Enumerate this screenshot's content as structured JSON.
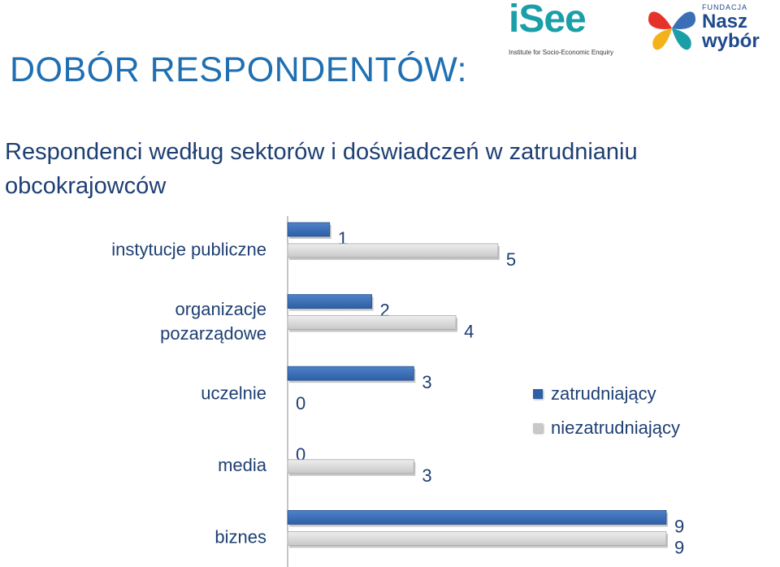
{
  "heading": "DOBÓR RESPONDENTÓW:",
  "logos": {
    "isee_word": "iSee",
    "isee_tagline": "Institute for Socio-Economic Enquiry",
    "nasz_small": "FUNDACJA",
    "nasz_line1": "Nasz",
    "nasz_line2": "wybór"
  },
  "colors": {
    "zatrudniajacy": "#2e5fa6",
    "niezatrudniajacy": "#c8c8c8",
    "text": "#1e3f73"
  },
  "chart_data": {
    "type": "bar",
    "orientation": "horizontal",
    "title": "Respondenci według sektorów i doświadczeń w zatrudnianiu obcokrajowców",
    "categories": [
      "instytucje publiczne",
      "organizacje pozarządowe",
      "uczelnie",
      "media",
      "biznes"
    ],
    "series": [
      {
        "name": "zatrudniający",
        "values": [
          1,
          2,
          3,
          0,
          9
        ]
      },
      {
        "name": "niezatrudniający",
        "values": [
          5,
          4,
          0,
          3,
          9
        ]
      }
    ],
    "xlim": [
      0,
      9
    ],
    "grid": false,
    "legend_position": "right"
  }
}
